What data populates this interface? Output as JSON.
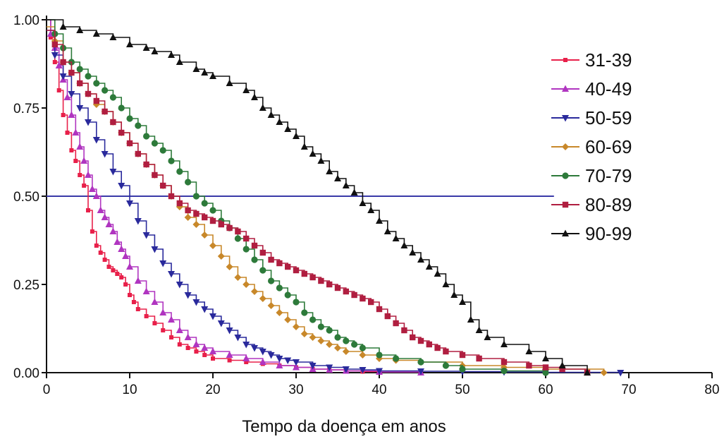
{
  "chart_data": {
    "type": "line",
    "title": "",
    "xlabel": "Tempo da doença em anos",
    "ylabel": "",
    "xlim": [
      0,
      80
    ],
    "ylim": [
      0,
      1
    ],
    "x_ticks": [
      0,
      10,
      20,
      30,
      40,
      50,
      60,
      70,
      80
    ],
    "x_tick_labels": [
      "0",
      "10",
      "20",
      "30",
      "40",
      "50",
      "60",
      "70",
      "80"
    ],
    "y_ticks": [
      0,
      0.25,
      0.5,
      0.75,
      1.0
    ],
    "y_tick_labels": [
      "0.00",
      "0.25",
      "0.50",
      "0.75",
      "1.00"
    ],
    "step": true,
    "grid": false,
    "legend_position": "right",
    "reference_line": {
      "y": 0.5,
      "x_end": 61,
      "color": "#3a3aa8"
    },
    "series": [
      {
        "name": "31-39",
        "color": "#e8204a",
        "marker": "square-small",
        "x": [
          0,
          0.5,
          1,
          1.5,
          2,
          2.5,
          3,
          3.5,
          4,
          4.5,
          5,
          5.5,
          6,
          6.5,
          7,
          7.5,
          8,
          8.5,
          9,
          9.5,
          10,
          10.5,
          11,
          12,
          13,
          14,
          15,
          16,
          17,
          18,
          19,
          20,
          22,
          24,
          26,
          28,
          30,
          32,
          34,
          36,
          38,
          40,
          45
        ],
        "y": [
          1.0,
          0.95,
          0.88,
          0.8,
          0.73,
          0.68,
          0.63,
          0.6,
          0.56,
          0.53,
          0.46,
          0.4,
          0.36,
          0.34,
          0.32,
          0.3,
          0.29,
          0.28,
          0.27,
          0.25,
          0.22,
          0.2,
          0.18,
          0.16,
          0.14,
          0.12,
          0.1,
          0.08,
          0.07,
          0.06,
          0.05,
          0.04,
          0.035,
          0.03,
          0.025,
          0.02,
          0.015,
          0.01,
          0.008,
          0.005,
          0.003,
          0.002,
          0.0
        ]
      },
      {
        "name": "40-49",
        "color": "#b035c0",
        "marker": "triangle-up",
        "x": [
          0,
          0.5,
          1,
          1.5,
          2,
          2.5,
          3,
          3.5,
          4,
          4.5,
          5,
          5.5,
          6,
          6.5,
          7,
          7.5,
          8,
          8.5,
          9,
          9.5,
          10,
          11,
          12,
          13,
          14,
          15,
          16,
          17,
          18,
          19,
          20,
          22,
          24,
          26,
          28,
          30,
          32,
          34,
          36,
          40,
          45
        ],
        "y": [
          1.0,
          0.96,
          0.92,
          0.87,
          0.83,
          0.78,
          0.73,
          0.68,
          0.64,
          0.6,
          0.56,
          0.52,
          0.5,
          0.46,
          0.44,
          0.42,
          0.4,
          0.37,
          0.35,
          0.33,
          0.3,
          0.26,
          0.23,
          0.2,
          0.17,
          0.15,
          0.12,
          0.1,
          0.08,
          0.07,
          0.06,
          0.05,
          0.04,
          0.03,
          0.02,
          0.015,
          0.01,
          0.008,
          0.005,
          0.002,
          0.0
        ]
      },
      {
        "name": "50-59",
        "color": "#2a2a9c",
        "marker": "triangle-down",
        "x": [
          0,
          1,
          2,
          3,
          4,
          5,
          6,
          7,
          8,
          9,
          10,
          11,
          12,
          13,
          14,
          15,
          16,
          17,
          18,
          19,
          20,
          21,
          22,
          23,
          24,
          25,
          26,
          27,
          28,
          29,
          30,
          32,
          34,
          36,
          38,
          40,
          45,
          50,
          55,
          60,
          69
        ],
        "y": [
          0.97,
          0.9,
          0.84,
          0.79,
          0.75,
          0.71,
          0.66,
          0.62,
          0.57,
          0.53,
          0.48,
          0.43,
          0.39,
          0.35,
          0.31,
          0.28,
          0.25,
          0.22,
          0.2,
          0.18,
          0.16,
          0.14,
          0.12,
          0.1,
          0.08,
          0.07,
          0.06,
          0.05,
          0.04,
          0.035,
          0.03,
          0.02,
          0.015,
          0.01,
          0.008,
          0.005,
          0.004,
          0.003,
          0.002,
          0.001,
          0.0
        ]
      },
      {
        "name": "60-69",
        "color": "#c8882a",
        "marker": "diamond",
        "x": [
          0,
          1,
          2,
          3,
          4,
          5,
          6,
          7,
          8,
          9,
          10,
          11,
          12,
          13,
          14,
          15,
          16,
          17,
          18,
          19,
          20,
          21,
          22,
          23,
          24,
          25,
          26,
          27,
          28,
          29,
          30,
          31,
          32,
          33,
          34,
          35,
          36,
          38,
          40,
          42,
          45,
          50,
          55,
          60,
          67
        ],
        "y": [
          0.98,
          0.94,
          0.88,
          0.85,
          0.82,
          0.79,
          0.76,
          0.74,
          0.71,
          0.68,
          0.65,
          0.62,
          0.59,
          0.56,
          0.53,
          0.5,
          0.47,
          0.44,
          0.42,
          0.39,
          0.36,
          0.33,
          0.3,
          0.27,
          0.25,
          0.23,
          0.21,
          0.19,
          0.17,
          0.15,
          0.13,
          0.11,
          0.1,
          0.09,
          0.08,
          0.07,
          0.06,
          0.05,
          0.04,
          0.035,
          0.03,
          0.02,
          0.015,
          0.01,
          0.0
        ]
      },
      {
        "name": "70-79",
        "color": "#2d7a3a",
        "marker": "circle",
        "x": [
          0,
          1,
          2,
          3,
          4,
          5,
          6,
          7,
          8,
          9,
          10,
          11,
          12,
          13,
          14,
          15,
          16,
          17,
          18,
          19,
          20,
          21,
          22,
          23,
          24,
          25,
          26,
          27,
          28,
          29,
          30,
          31,
          32,
          33,
          34,
          35,
          36,
          37,
          38,
          40,
          42,
          45,
          48,
          50,
          55,
          60
        ],
        "y": [
          1.0,
          0.96,
          0.92,
          0.88,
          0.86,
          0.84,
          0.82,
          0.8,
          0.78,
          0.75,
          0.72,
          0.7,
          0.67,
          0.65,
          0.63,
          0.6,
          0.57,
          0.54,
          0.5,
          0.48,
          0.46,
          0.43,
          0.41,
          0.38,
          0.35,
          0.32,
          0.29,
          0.26,
          0.24,
          0.22,
          0.2,
          0.17,
          0.15,
          0.13,
          0.12,
          0.1,
          0.09,
          0.08,
          0.07,
          0.05,
          0.04,
          0.03,
          0.02,
          0.01,
          0.005,
          0.0
        ]
      },
      {
        "name": "80-89",
        "color": "#b01e40",
        "marker": "square",
        "x": [
          0,
          1,
          2,
          3,
          4,
          5,
          6,
          7,
          8,
          9,
          10,
          11,
          12,
          13,
          14,
          15,
          16,
          17,
          18,
          19,
          20,
          21,
          22,
          23,
          24,
          25,
          26,
          27,
          28,
          29,
          30,
          31,
          32,
          33,
          34,
          35,
          36,
          37,
          38,
          39,
          40,
          41,
          42,
          43,
          44,
          45,
          46,
          47,
          48,
          50,
          52,
          55,
          58,
          60,
          62,
          65
        ],
        "y": [
          0.97,
          0.93,
          0.88,
          0.85,
          0.82,
          0.79,
          0.77,
          0.74,
          0.71,
          0.68,
          0.65,
          0.62,
          0.59,
          0.56,
          0.53,
          0.5,
          0.48,
          0.46,
          0.45,
          0.44,
          0.43,
          0.42,
          0.41,
          0.4,
          0.38,
          0.36,
          0.34,
          0.32,
          0.31,
          0.3,
          0.29,
          0.28,
          0.27,
          0.26,
          0.25,
          0.24,
          0.23,
          0.22,
          0.21,
          0.2,
          0.18,
          0.16,
          0.14,
          0.12,
          0.1,
          0.09,
          0.08,
          0.07,
          0.06,
          0.05,
          0.04,
          0.03,
          0.02,
          0.015,
          0.01,
          0.0
        ]
      },
      {
        "name": "90-99",
        "color": "#111111",
        "marker": "triangle-up",
        "x": [
          0,
          2,
          4,
          6,
          8,
          10,
          12,
          13,
          15,
          16,
          18,
          19,
          20,
          22,
          24,
          25,
          26,
          27,
          28,
          29,
          30,
          31,
          32,
          33,
          34,
          35,
          36,
          37,
          38,
          39,
          40,
          41,
          42,
          43,
          44,
          45,
          46,
          47,
          48,
          49,
          50,
          51,
          52,
          53,
          55,
          58,
          60,
          62,
          65
        ],
        "y": [
          1.0,
          0.98,
          0.97,
          0.96,
          0.95,
          0.93,
          0.92,
          0.91,
          0.9,
          0.88,
          0.86,
          0.85,
          0.84,
          0.82,
          0.8,
          0.78,
          0.75,
          0.73,
          0.71,
          0.69,
          0.67,
          0.64,
          0.62,
          0.6,
          0.57,
          0.55,
          0.53,
          0.51,
          0.48,
          0.46,
          0.43,
          0.4,
          0.38,
          0.36,
          0.34,
          0.32,
          0.3,
          0.28,
          0.25,
          0.22,
          0.2,
          0.15,
          0.12,
          0.1,
          0.08,
          0.06,
          0.04,
          0.02,
          0.0
        ]
      }
    ]
  }
}
